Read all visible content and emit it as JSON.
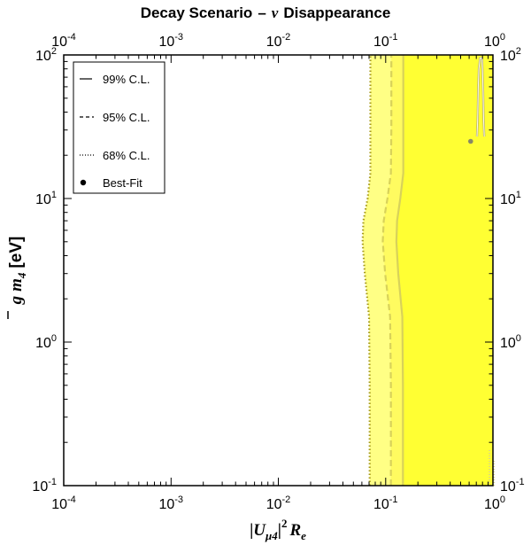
{
  "chart_data": {
    "type": "area",
    "title_parts": [
      "Decay Scenario",
      "–",
      "ν",
      "Disappearance"
    ],
    "xlabel_parts": {
      "bar": "|",
      "u": "U",
      "usub": "μ4",
      "bar2": "|",
      "sup": "2",
      "r": "R",
      "rsub": "e"
    },
    "ylabel_parts": {
      "g": "g",
      "m": "m",
      "msub": "4",
      "unit": "[eV]"
    },
    "x_scale": "log",
    "y_scale": "log",
    "xlim": [
      0.0001,
      1
    ],
    "ylim": [
      0.1,
      100
    ],
    "x_ticks": [
      {
        "base": "10",
        "exp": "-4",
        "value": 0.0001
      },
      {
        "base": "10",
        "exp": "-3",
        "value": 0.001
      },
      {
        "base": "10",
        "exp": "-2",
        "value": 0.01
      },
      {
        "base": "10",
        "exp": "-1",
        "value": 0.1
      },
      {
        "base": "10",
        "exp": "0",
        "value": 1
      }
    ],
    "y_ticks": [
      {
        "base": "10",
        "exp": "-1",
        "value": 0.1
      },
      {
        "base": "10",
        "exp": "0",
        "value": 1
      },
      {
        "base": "10",
        "exp": "1",
        "value": 10
      },
      {
        "base": "10",
        "exp": "2",
        "value": 100
      }
    ],
    "legend": {
      "placement": "top-left",
      "entries": [
        {
          "label": "99% C.L.",
          "style": "solid"
        },
        {
          "label": "95% C.L.",
          "style": "dashed"
        },
        {
          "label": "68% C.L.",
          "style": "dotted"
        },
        {
          "label": "Best-Fit",
          "style": "point"
        }
      ]
    },
    "colors": {
      "cl68": "#ffff33",
      "cl95": "#fffb60",
      "cl99": "#ffff85",
      "contour": "#a69a1a",
      "contour_light": "#d8d25a",
      "bestfit": "#888866"
    },
    "series": [
      {
        "name": "99% C.L.",
        "points": [
          [
            0.071,
            0.1
          ],
          [
            0.071,
            0.5
          ],
          [
            0.07,
            1.5
          ],
          [
            0.064,
            3
          ],
          [
            0.061,
            5
          ],
          [
            0.062,
            7
          ],
          [
            0.068,
            10
          ],
          [
            0.072,
            15
          ],
          [
            0.072,
            30
          ],
          [
            0.072,
            100
          ]
        ]
      },
      {
        "name": "95% C.L.",
        "points": [
          [
            0.112,
            0.1
          ],
          [
            0.112,
            0.5
          ],
          [
            0.11,
            1.5
          ],
          [
            0.099,
            3
          ],
          [
            0.094,
            5
          ],
          [
            0.096,
            7
          ],
          [
            0.104,
            10
          ],
          [
            0.112,
            15
          ],
          [
            0.113,
            30
          ],
          [
            0.113,
            100
          ]
        ]
      },
      {
        "name": "68% C.L.",
        "points": [
          [
            0.145,
            0.1
          ],
          [
            0.145,
            0.5
          ],
          [
            0.143,
            1.5
          ],
          [
            0.131,
            3
          ],
          [
            0.126,
            5
          ],
          [
            0.128,
            7
          ],
          [
            0.137,
            10
          ],
          [
            0.146,
            15
          ],
          [
            0.146,
            30
          ],
          [
            0.146,
            100
          ]
        ]
      },
      {
        "name": "68% C.L. right island",
        "points": [
          [
            0.71,
            27
          ],
          [
            0.72,
            35
          ],
          [
            0.73,
            60
          ],
          [
            0.74,
            80
          ],
          [
            0.76,
            95
          ],
          [
            0.79,
            95
          ],
          [
            0.8,
            80
          ],
          [
            0.81,
            55
          ],
          [
            0.82,
            35
          ],
          [
            0.83,
            27
          ]
        ]
      }
    ],
    "best_fit": {
      "x": 0.62,
      "y": 25
    }
  }
}
